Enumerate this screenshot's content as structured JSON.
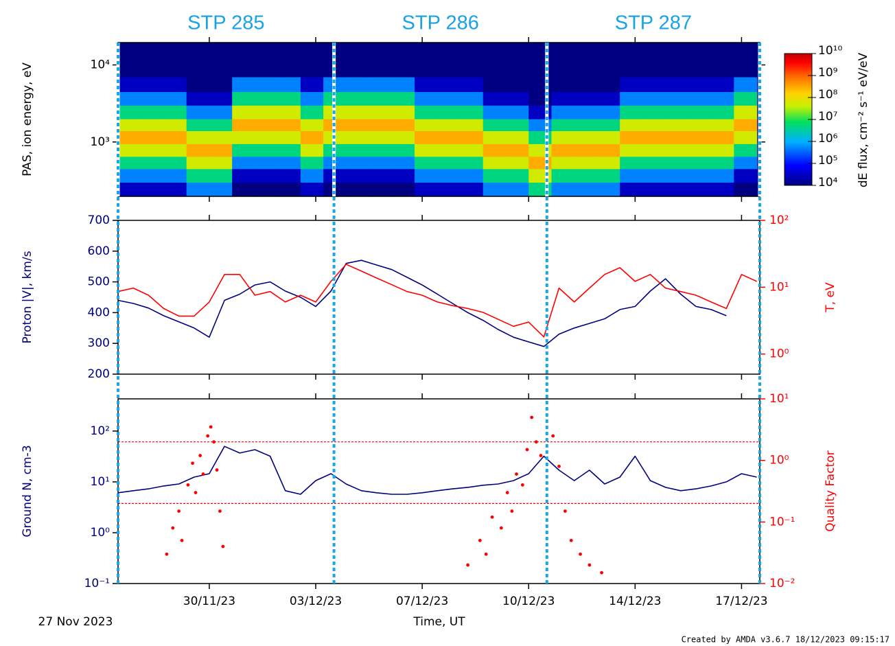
{
  "time_axis": {
    "xlim": [
      0,
      21.1
    ],
    "xticks": [
      {
        "value": 3,
        "label": "30/11/23"
      },
      {
        "value": 6.5,
        "label": "03/12/23"
      },
      {
        "value": 10,
        "label": "07/12/23"
      },
      {
        "value": 13.5,
        "label": "10/12/23"
      },
      {
        "value": 17,
        "label": "14/12/23"
      },
      {
        "value": 20.5,
        "label": "17/12/23"
      }
    ],
    "label": "Time, UT",
    "start_label": "27 Nov 2023"
  },
  "intervals": [
    {
      "label": "STP 285",
      "start": 0,
      "end": 7.1
    },
    {
      "label": "STP 286",
      "start": 7.1,
      "end": 14.1
    },
    {
      "label": "STP 287",
      "start": 14.1,
      "end": 21.1
    }
  ],
  "footer": "Created by AMDA v3.6.7 18/12/2023 09:15:17",
  "chart_data": [
    {
      "type": "heatmap",
      "ylabel": "PAS, ion energy, eV",
      "log_y": true,
      "ylim": [
        197,
        19500
      ],
      "yticks": [
        {
          "value": 1000,
          "label": "10³"
        },
        {
          "value": 10000,
          "label": "10⁴"
        }
      ],
      "x_bins": [
        0,
        0.75,
        1.5,
        2.25,
        3,
        3.75,
        4.5,
        5.25,
        6,
        6.75,
        7.5,
        8.25,
        9,
        9.75,
        10.5,
        11.25,
        12,
        12.75,
        13.5,
        14.25,
        15,
        15.75,
        16.5,
        17.25,
        18,
        18.75,
        19.5,
        20.25,
        21
      ],
      "y_bins": [
        197,
        300,
        450,
        650,
        950,
        1400,
        2000,
        3000,
        4500,
        7000,
        19500
      ],
      "z": [
        [
          30000.0,
          500000.0,
          5000000.0,
          50000000.0,
          300000000.0,
          50000000.0,
          5000000.0,
          500000.0,
          30000.0,
          10000.0
        ],
        [
          30000.0,
          500000.0,
          5000000.0,
          50000000.0,
          300000000.0,
          50000000.0,
          5000000.0,
          500000.0,
          30000.0,
          10000.0
        ],
        [
          30000.0,
          500000.0,
          5000000.0,
          50000000.0,
          300000000.0,
          50000000.0,
          5000000.0,
          500000.0,
          30000.0,
          10000.0
        ],
        [
          500000.0,
          5000000.0,
          50000000.0,
          300000000.0,
          50000000.0,
          5000000.0,
          500000.0,
          30000.0,
          10000.0,
          10000.0
        ],
        [
          500000.0,
          5000000.0,
          50000000.0,
          300000000.0,
          50000000.0,
          5000000.0,
          500000.0,
          30000.0,
          10000.0,
          10000.0
        ],
        [
          10000.0,
          30000.0,
          500000.0,
          5000000.0,
          50000000.0,
          300000000.0,
          50000000.0,
          5000000.0,
          500000.0,
          10000.0
        ],
        [
          10000.0,
          30000.0,
          500000.0,
          5000000.0,
          50000000.0,
          300000000.0,
          50000000.0,
          5000000.0,
          500000.0,
          10000.0
        ],
        [
          10000.0,
          30000.0,
          500000.0,
          5000000.0,
          50000000.0,
          300000000.0,
          50000000.0,
          5000000.0,
          500000.0,
          10000.0
        ],
        [
          30000.0,
          500000.0,
          5000000.0,
          50000000.0,
          300000000.0,
          50000000.0,
          5000000.0,
          500000.0,
          30000.0,
          10000.0
        ],
        [
          10000.0,
          30000.0,
          500000.0,
          5000000.0,
          50000000.0,
          300000000.0,
          50000000.0,
          5000000.0,
          500000.0,
          10000.0
        ],
        [
          10000.0,
          30000.0,
          500000.0,
          5000000.0,
          50000000.0,
          300000000.0,
          50000000.0,
          5000000.0,
          500000.0,
          10000.0
        ],
        [
          10000.0,
          30000.0,
          500000.0,
          5000000.0,
          50000000.0,
          300000000.0,
          50000000.0,
          5000000.0,
          500000.0,
          10000.0
        ],
        [
          10000.0,
          30000.0,
          500000.0,
          5000000.0,
          50000000.0,
          300000000.0,
          50000000.0,
          5000000.0,
          500000.0,
          10000.0
        ],
        [
          30000.0,
          500000.0,
          5000000.0,
          50000000.0,
          300000000.0,
          50000000.0,
          5000000.0,
          500000.0,
          30000.0,
          10000.0
        ],
        [
          30000.0,
          500000.0,
          5000000.0,
          50000000.0,
          300000000.0,
          50000000.0,
          5000000.0,
          500000.0,
          30000.0,
          10000.0
        ],
        [
          30000.0,
          500000.0,
          5000000.0,
          50000000.0,
          300000000.0,
          50000000.0,
          5000000.0,
          500000.0,
          30000.0,
          10000.0
        ],
        [
          500000.0,
          5000000.0,
          50000000.0,
          300000000.0,
          50000000.0,
          5000000.0,
          500000.0,
          30000.0,
          10000.0,
          10000.0
        ],
        [
          500000.0,
          5000000.0,
          50000000.0,
          300000000.0,
          50000000.0,
          5000000.0,
          500000.0,
          30000.0,
          10000.0,
          10000.0
        ],
        [
          5000000.0,
          50000000.0,
          300000000.0,
          50000000.0,
          5000000.0,
          500000.0,
          30000.0,
          10000.0,
          10000.0,
          10000.0
        ],
        [
          500000.0,
          5000000.0,
          50000000.0,
          300000000.0,
          50000000.0,
          5000000.0,
          500000.0,
          30000.0,
          10000.0,
          10000.0
        ],
        [
          500000.0,
          5000000.0,
          50000000.0,
          300000000.0,
          50000000.0,
          5000000.0,
          500000.0,
          30000.0,
          10000.0,
          10000.0
        ],
        [
          500000.0,
          5000000.0,
          50000000.0,
          300000000.0,
          50000000.0,
          5000000.0,
          500000.0,
          30000.0,
          10000.0,
          10000.0
        ],
        [
          30000.0,
          500000.0,
          5000000.0,
          50000000.0,
          300000000.0,
          50000000.0,
          5000000.0,
          500000.0,
          30000.0,
          10000.0
        ],
        [
          30000.0,
          500000.0,
          5000000.0,
          50000000.0,
          300000000.0,
          50000000.0,
          5000000.0,
          500000.0,
          30000.0,
          10000.0
        ],
        [
          30000.0,
          500000.0,
          5000000.0,
          50000000.0,
          300000000.0,
          50000000.0,
          5000000.0,
          500000.0,
          30000.0,
          10000.0
        ],
        [
          30000.0,
          500000.0,
          5000000.0,
          50000000.0,
          300000000.0,
          50000000.0,
          5000000.0,
          500000.0,
          30000.0,
          10000.0
        ],
        [
          30000.0,
          500000.0,
          5000000.0,
          50000000.0,
          300000000.0,
          50000000.0,
          5000000.0,
          500000.0,
          30000.0,
          10000.0
        ],
        [
          10000.0,
          30000.0,
          500000.0,
          5000000.0,
          50000000.0,
          300000000.0,
          50000000.0,
          5000000.0,
          500000.0,
          10000.0
        ]
      ],
      "colorbar": {
        "label": "dE flux, cm⁻² s⁻¹ eV/eV",
        "log": true,
        "clim": [
          10000.0,
          10000000000.0
        ],
        "ticks": [
          {
            "value": 10000.0,
            "label": "10⁴"
          },
          {
            "value": 100000.0,
            "label": "10⁵"
          },
          {
            "value": 1000000.0,
            "label": "10⁶"
          },
          {
            "value": 10000000.0,
            "label": "10⁷"
          },
          {
            "value": 100000000.0,
            "label": "10⁸"
          },
          {
            "value": 1000000000.0,
            "label": "10⁹"
          },
          {
            "value": 10000000000.0,
            "label": "10¹⁰"
          }
        ]
      }
    },
    {
      "type": "line",
      "ylabel": "Proton |V|, km/s",
      "y2label": "T, eV",
      "ylim": [
        200,
        700
      ],
      "yticks": [
        200,
        300,
        400,
        500,
        600,
        700
      ],
      "y2lim": [
        0.5,
        100
      ],
      "log_y2": true,
      "y2ticks": [
        {
          "value": 1,
          "label": "10⁰"
        },
        {
          "value": 10,
          "label": "10¹"
        },
        {
          "value": 100,
          "label": "10²"
        }
      ],
      "x": [
        0,
        0.5,
        1,
        1.5,
        2,
        2.5,
        3,
        3.5,
        4,
        4.5,
        5,
        5.5,
        6,
        6.5,
        7,
        7.5,
        8,
        8.5,
        9,
        9.5,
        10,
        10.5,
        11,
        11.5,
        12,
        12.5,
        13,
        13.5,
        14,
        14.5,
        15,
        15.5,
        16,
        16.5,
        17,
        17.5,
        18,
        18.5,
        19,
        19.5,
        20,
        20.5,
        21
      ],
      "series": [
        {
          "color": "#00007f",
          "values": [
            440,
            430,
            415,
            390,
            370,
            350,
            320,
            440,
            460,
            490,
            500,
            470,
            450,
            420,
            470,
            560,
            570,
            555,
            540,
            515,
            490,
            460,
            430,
            400,
            375,
            345,
            320,
            305,
            290,
            330,
            350,
            365,
            380,
            410,
            420,
            470,
            510,
            460,
            420,
            410,
            390,
            null,
            null
          ]
        },
        {
          "color": "#ff0000",
          "axis": "y2",
          "values": [
            8.6,
            9.7,
            7.6,
            4.8,
            3.7,
            3.7,
            6.0,
            15.5,
            15.5,
            7.6,
            8.6,
            6.0,
            7.6,
            6.0,
            12.2,
            22,
            17.4,
            13.7,
            10.9,
            8.6,
            7.6,
            6.0,
            5.3,
            4.8,
            4.2,
            3.3,
            2.6,
            3.0,
            1.8,
            9.7,
            6.0,
            9.7,
            15.5,
            19.6,
            12.2,
            15.5,
            9.7,
            8.6,
            7.6,
            6.0,
            4.8,
            15.5,
            12.2
          ]
        }
      ]
    },
    {
      "type": "line",
      "ylabel": "Ground N, cm-3",
      "y2label": "Quality Factor",
      "ylim": [
        0.1,
        430
      ],
      "log_y": true,
      "yticks": [
        {
          "value": 0.1,
          "label": "10⁻¹"
        },
        {
          "value": 1,
          "label": "10⁰"
        },
        {
          "value": 10,
          "label": "10¹"
        },
        {
          "value": 100,
          "label": "10²"
        }
      ],
      "y2lim": [
        0.01,
        10
      ],
      "log_y2": true,
      "y2ticks": [
        {
          "value": 0.01,
          "label": "10⁻²"
        },
        {
          "value": 0.1,
          "label": "10⁻¹"
        },
        {
          "value": 1,
          "label": "10⁰"
        },
        {
          "value": 10,
          "label": "10¹"
        }
      ],
      "y2_reference_lines": [
        2,
        0.2
      ],
      "x": [
        0,
        0.5,
        1,
        1.5,
        2,
        2.5,
        3,
        3.5,
        4,
        4.5,
        5,
        5.5,
        6,
        6.5,
        7,
        7.5,
        8,
        8.5,
        9,
        9.5,
        10,
        10.5,
        11,
        11.5,
        12,
        12.5,
        13,
        13.5,
        14,
        14.5,
        15,
        15.5,
        16,
        16.5,
        17,
        17.5,
        18,
        18.5,
        19,
        19.5,
        20,
        20.5,
        21
      ],
      "series": [
        {
          "color": "#00007f",
          "values": [
            6.1,
            6.7,
            7.3,
            8.3,
            9.1,
            12.4,
            14.5,
            50,
            37,
            43,
            32,
            6.7,
            5.7,
            10.6,
            14.5,
            9.1,
            6.7,
            6.1,
            5.7,
            5.7,
            6.1,
            6.7,
            7.3,
            7.8,
            8.6,
            9.1,
            10.6,
            14.5,
            32,
            17,
            10.6,
            17,
            9.1,
            12.4,
            32,
            10.6,
            7.8,
            6.7,
            7.3,
            8.3,
            10,
            14.5,
            12.4
          ]
        },
        {
          "color": "#ff0000",
          "axis": "y2",
          "type": "scatter",
          "x": [
            1.6,
            1.8,
            2.0,
            2.1,
            2.3,
            2.45,
            2.55,
            2.7,
            2.8,
            2.95,
            3.05,
            3.15,
            3.25,
            3.35,
            3.45,
            11.5,
            11.9,
            12.1,
            12.3,
            12.6,
            12.8,
            12.95,
            13.1,
            13.3,
            13.45,
            13.6,
            13.75,
            13.9,
            14.3,
            14.5,
            14.7,
            14.9,
            15.2,
            15.5,
            15.9
          ],
          "values": [
            0.03,
            0.08,
            0.15,
            0.05,
            0.4,
            0.9,
            0.3,
            1.2,
            0.6,
            2.5,
            3.5,
            2.0,
            0.7,
            0.15,
            0.04,
            0.02,
            0.05,
            0.03,
            0.12,
            0.08,
            0.3,
            0.15,
            0.6,
            0.4,
            1.5,
            5,
            2,
            1.2,
            2.5,
            0.8,
            0.15,
            0.05,
            0.03,
            0.02,
            0.015
          ]
        }
      ]
    }
  ]
}
